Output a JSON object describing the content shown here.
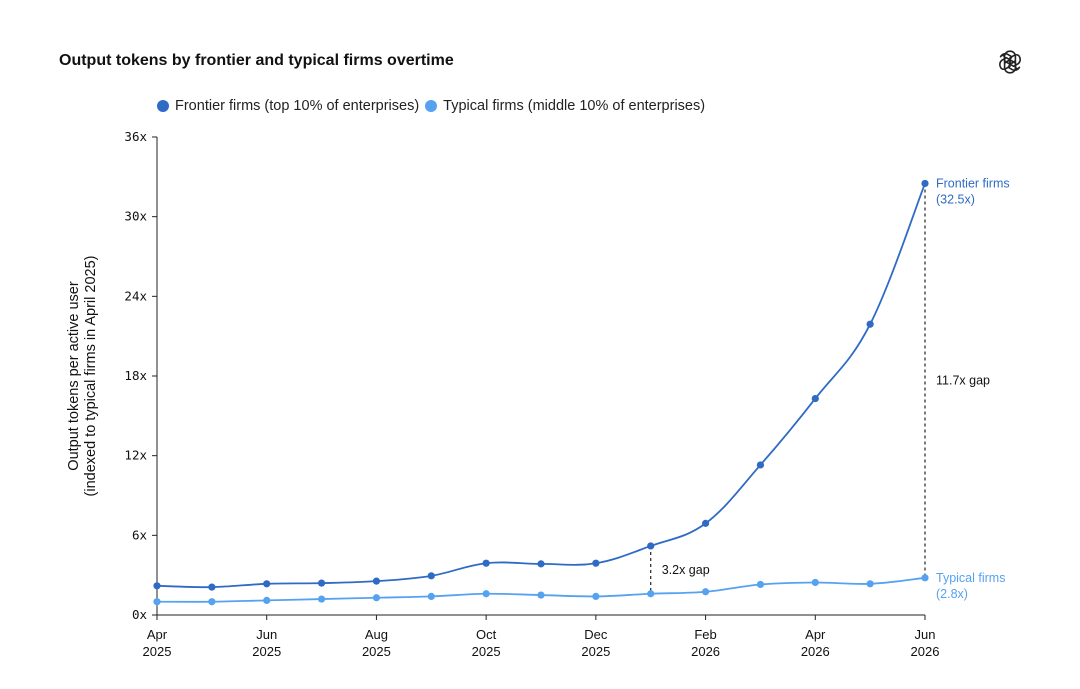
{
  "chart_data": {
    "type": "line",
    "title": "Output tokens by frontier and typical firms overtime",
    "ylabel_lines": [
      "Output tokens per active user",
      "(indexed to typical firms in April 2025)"
    ],
    "xlabel": "",
    "ylim": [
      0,
      36
    ],
    "y_ticks": [
      0,
      6,
      12,
      18,
      24,
      30,
      36
    ],
    "y_tick_labels": [
      "0x",
      "6x",
      "12x",
      "18x",
      "24x",
      "30x",
      "36x"
    ],
    "x": [
      "2025-04",
      "2025-05",
      "2025-06",
      "2025-07",
      "2025-08",
      "2025-09",
      "2025-10",
      "2025-11",
      "2025-12",
      "2026-01",
      "2026-02",
      "2026-03",
      "2026-04",
      "2026-05",
      "2026-06"
    ],
    "x_tick_indices": [
      0,
      2,
      4,
      6,
      8,
      10,
      12,
      14
    ],
    "x_tick_labels": [
      [
        "Apr",
        "2025"
      ],
      [
        "Jun",
        "2025"
      ],
      [
        "Aug",
        "2025"
      ],
      [
        "Oct",
        "2025"
      ],
      [
        "Dec",
        "2025"
      ],
      [
        "Feb",
        "2026"
      ],
      [
        "Apr",
        "2026"
      ],
      [
        "Jun",
        "2026"
      ]
    ],
    "grid": false,
    "legend_position": "top-left",
    "series": [
      {
        "name": "Frontier firms (top 10% of enterprises)",
        "color": "#2F6BC4",
        "values": [
          2.2,
          2.1,
          2.35,
          2.4,
          2.55,
          2.95,
          3.9,
          3.85,
          3.9,
          5.2,
          6.9,
          11.3,
          16.3,
          21.9,
          32.5
        ]
      },
      {
        "name": "Typical firms (middle 10% of enterprises)",
        "color": "#56A2F0",
        "values": [
          1.0,
          1.0,
          1.1,
          1.2,
          1.3,
          1.4,
          1.6,
          1.5,
          1.4,
          1.6,
          1.75,
          2.3,
          2.45,
          2.35,
          2.8
        ]
      }
    ],
    "annotations": {
      "frontier_end": [
        "Frontier firms",
        "(32.5x)"
      ],
      "typical_end": [
        "Typical firms",
        "(2.8x)"
      ],
      "gaps": [
        {
          "x_index": 9,
          "label": "3.2x gap"
        },
        {
          "x_index": 14,
          "label": "11.7x gap"
        }
      ]
    }
  }
}
